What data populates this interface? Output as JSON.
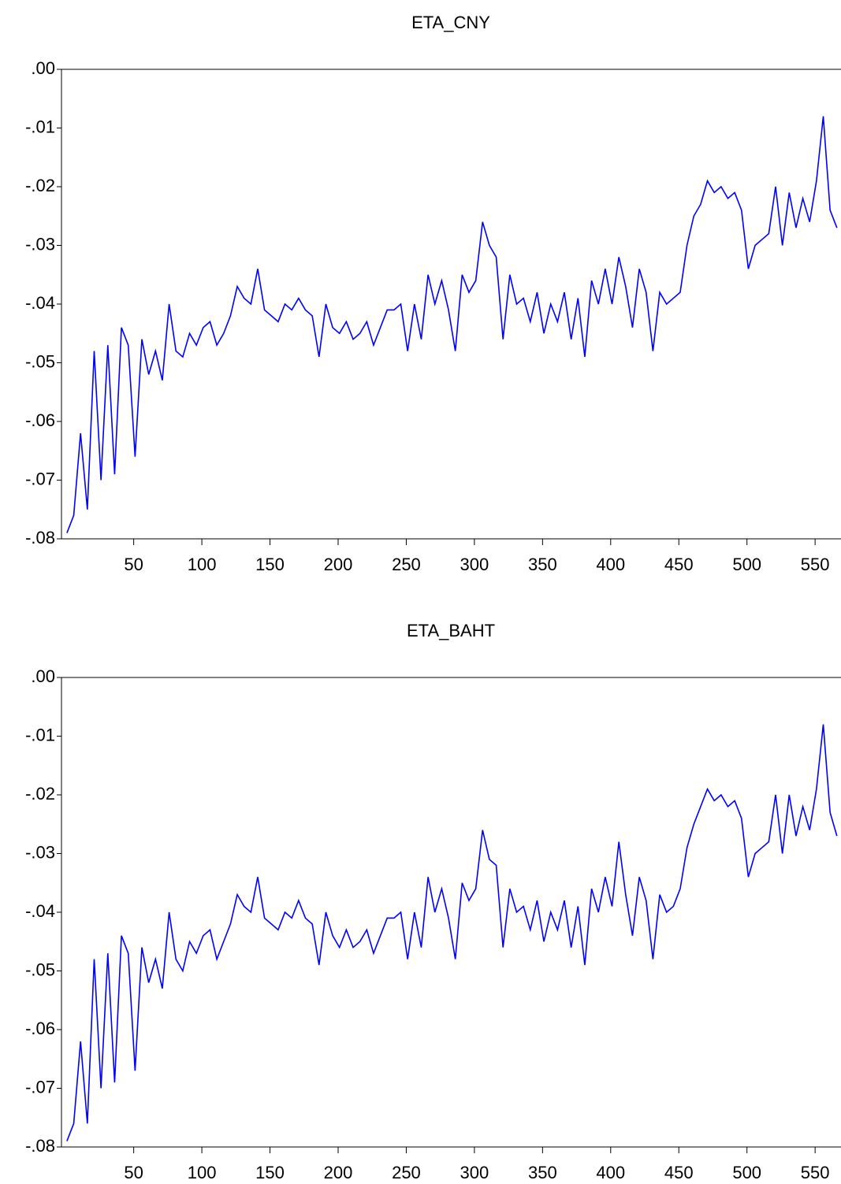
{
  "chart_data": [
    {
      "type": "line",
      "title": "ETA_CNY",
      "x": [
        1,
        6,
        11,
        16,
        21,
        26,
        31,
        36,
        41,
        46,
        51,
        56,
        61,
        66,
        71,
        76,
        81,
        86,
        91,
        96,
        101,
        106,
        111,
        116,
        121,
        126,
        131,
        136,
        141,
        146,
        151,
        156,
        161,
        166,
        171,
        176,
        181,
        186,
        191,
        196,
        201,
        206,
        211,
        216,
        221,
        226,
        231,
        236,
        241,
        246,
        251,
        256,
        261,
        266,
        271,
        276,
        281,
        286,
        291,
        296,
        301,
        306,
        311,
        316,
        321,
        326,
        331,
        336,
        341,
        346,
        351,
        356,
        361,
        366,
        371,
        376,
        381,
        386,
        391,
        396,
        401,
        406,
        411,
        416,
        421,
        426,
        431,
        436,
        441,
        446,
        451,
        456,
        461,
        466,
        471,
        476,
        481,
        486,
        491,
        496,
        501,
        506,
        511,
        516,
        521,
        526,
        531,
        536,
        541,
        546,
        551,
        556,
        561,
        566
      ],
      "series": [
        {
          "name": "ETA_CNY",
          "color": "#0000ff",
          "values": [
            -0.079,
            -0.076,
            -0.062,
            -0.075,
            -0.048,
            -0.07,
            -0.047,
            -0.069,
            -0.044,
            -0.047,
            -0.066,
            -0.046,
            -0.052,
            -0.048,
            -0.053,
            -0.04,
            -0.048,
            -0.049,
            -0.045,
            -0.047,
            -0.044,
            -0.043,
            -0.047,
            -0.045,
            -0.042,
            -0.037,
            -0.039,
            -0.04,
            -0.034,
            -0.041,
            -0.042,
            -0.043,
            -0.04,
            -0.041,
            -0.039,
            -0.041,
            -0.042,
            -0.049,
            -0.04,
            -0.044,
            -0.045,
            -0.043,
            -0.046,
            -0.045,
            -0.043,
            -0.047,
            -0.044,
            -0.041,
            -0.041,
            -0.04,
            -0.048,
            -0.04,
            -0.046,
            -0.035,
            -0.04,
            -0.036,
            -0.041,
            -0.048,
            -0.035,
            -0.038,
            -0.036,
            -0.026,
            -0.03,
            -0.032,
            -0.046,
            -0.035,
            -0.04,
            -0.039,
            -0.043,
            -0.038,
            -0.045,
            -0.04,
            -0.043,
            -0.038,
            -0.046,
            -0.039,
            -0.049,
            -0.036,
            -0.04,
            -0.034,
            -0.04,
            -0.032,
            -0.037,
            -0.044,
            -0.034,
            -0.038,
            -0.048,
            -0.038,
            -0.04,
            -0.039,
            -0.038,
            -0.03,
            -0.025,
            -0.023,
            -0.019,
            -0.021,
            -0.02,
            -0.022,
            -0.021,
            -0.024,
            -0.034,
            -0.03,
            -0.029,
            -0.028,
            -0.02,
            -0.03,
            -0.021,
            -0.027,
            -0.022,
            -0.026,
            -0.019,
            -0.008,
            -0.024,
            -0.027
          ]
        }
      ],
      "xlim": [
        -3,
        569
      ],
      "xticks": [
        50,
        100,
        150,
        200,
        250,
        300,
        350,
        400,
        450,
        500,
        550
      ],
      "ylim": [
        -0.08,
        0
      ],
      "yticks": [
        {
          "value": 0,
          "label": ".00"
        },
        {
          "value": -0.01,
          "label": "-.01"
        },
        {
          "value": -0.02,
          "label": "-.02"
        },
        {
          "value": -0.03,
          "label": "-.03"
        },
        {
          "value": -0.04,
          "label": "-.04"
        },
        {
          "value": -0.05,
          "label": "-.05"
        },
        {
          "value": -0.06,
          "label": "-.06"
        },
        {
          "value": -0.07,
          "label": "-.07"
        },
        {
          "value": -0.08,
          "label": "-.08"
        }
      ]
    },
    {
      "type": "line",
      "title": "ETA_BAHT",
      "x": [
        1,
        6,
        11,
        16,
        21,
        26,
        31,
        36,
        41,
        46,
        51,
        56,
        61,
        66,
        71,
        76,
        81,
        86,
        91,
        96,
        101,
        106,
        111,
        116,
        121,
        126,
        131,
        136,
        141,
        146,
        151,
        156,
        161,
        166,
        171,
        176,
        181,
        186,
        191,
        196,
        201,
        206,
        211,
        216,
        221,
        226,
        231,
        236,
        241,
        246,
        251,
        256,
        261,
        266,
        271,
        276,
        281,
        286,
        291,
        296,
        301,
        306,
        311,
        316,
        321,
        326,
        331,
        336,
        341,
        346,
        351,
        356,
        361,
        366,
        371,
        376,
        381,
        386,
        391,
        396,
        401,
        406,
        411,
        416,
        421,
        426,
        431,
        436,
        441,
        446,
        451,
        456,
        461,
        466,
        471,
        476,
        481,
        486,
        491,
        496,
        501,
        506,
        511,
        516,
        521,
        526,
        531,
        536,
        541,
        546,
        551,
        556,
        561,
        566
      ],
      "series": [
        {
          "name": "ETA_BAHT",
          "color": "#0000ff",
          "values": [
            -0.079,
            -0.076,
            -0.062,
            -0.076,
            -0.048,
            -0.07,
            -0.047,
            -0.069,
            -0.044,
            -0.047,
            -0.067,
            -0.046,
            -0.052,
            -0.048,
            -0.053,
            -0.04,
            -0.048,
            -0.05,
            -0.045,
            -0.047,
            -0.044,
            -0.043,
            -0.048,
            -0.045,
            -0.042,
            -0.037,
            -0.039,
            -0.04,
            -0.034,
            -0.041,
            -0.042,
            -0.043,
            -0.04,
            -0.041,
            -0.038,
            -0.041,
            -0.042,
            -0.049,
            -0.04,
            -0.044,
            -0.046,
            -0.043,
            -0.046,
            -0.045,
            -0.043,
            -0.047,
            -0.044,
            -0.041,
            -0.041,
            -0.04,
            -0.048,
            -0.04,
            -0.046,
            -0.034,
            -0.04,
            -0.036,
            -0.041,
            -0.048,
            -0.035,
            -0.038,
            -0.036,
            -0.026,
            -0.031,
            -0.032,
            -0.046,
            -0.036,
            -0.04,
            -0.039,
            -0.043,
            -0.038,
            -0.045,
            -0.04,
            -0.043,
            -0.038,
            -0.046,
            -0.039,
            -0.049,
            -0.036,
            -0.04,
            -0.034,
            -0.039,
            -0.028,
            -0.037,
            -0.044,
            -0.034,
            -0.038,
            -0.048,
            -0.037,
            -0.04,
            -0.039,
            -0.036,
            -0.029,
            -0.025,
            -0.022,
            -0.019,
            -0.021,
            -0.02,
            -0.022,
            -0.021,
            -0.024,
            -0.034,
            -0.03,
            -0.029,
            -0.028,
            -0.02,
            -0.03,
            -0.02,
            -0.027,
            -0.022,
            -0.026,
            -0.019,
            -0.008,
            -0.023,
            -0.027
          ]
        }
      ],
      "xlim": [
        -3,
        569
      ],
      "xticks": [
        50,
        100,
        150,
        200,
        250,
        300,
        350,
        400,
        450,
        500,
        550
      ],
      "ylim": [
        -0.08,
        0
      ],
      "yticks": [
        {
          "value": 0,
          "label": ".00"
        },
        {
          "value": -0.01,
          "label": "-.01"
        },
        {
          "value": -0.02,
          "label": "-.02"
        },
        {
          "value": -0.03,
          "label": "-.03"
        },
        {
          "value": -0.04,
          "label": "-.04"
        },
        {
          "value": -0.05,
          "label": "-.05"
        },
        {
          "value": -0.06,
          "label": "-.06"
        },
        {
          "value": -0.07,
          "label": "-.07"
        },
        {
          "value": -0.08,
          "label": "-.08"
        }
      ]
    }
  ]
}
